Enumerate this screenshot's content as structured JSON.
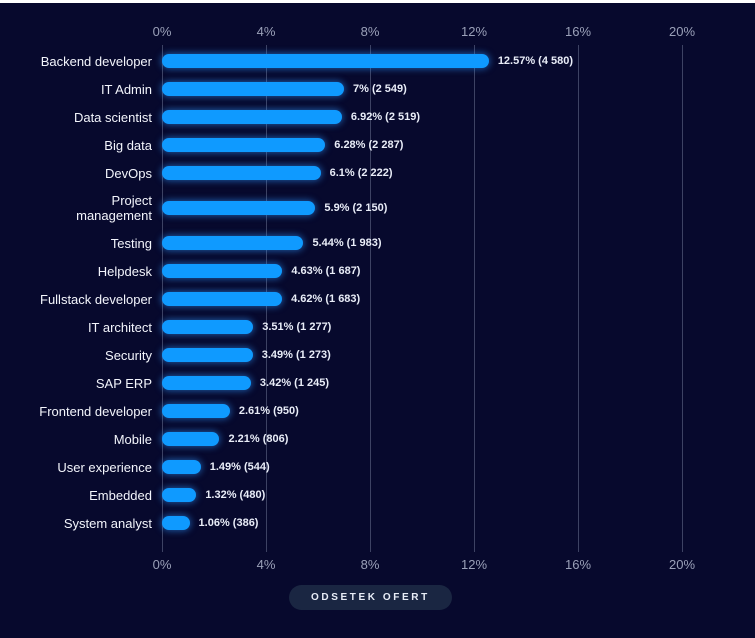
{
  "page": {
    "background": "#07092d",
    "top_strip_color": "#ffffff"
  },
  "chart_data": {
    "type": "bar",
    "orientation": "horizontal",
    "title": "",
    "xlabel": "ODSETEK OFERT",
    "ylabel": "",
    "xlim": [
      0,
      20
    ],
    "grid": true,
    "bar_color": "#0f9aff",
    "gridline_color": "#3d4263",
    "axis_text_color": "#9aa0b8",
    "x_ticks": [
      {
        "value": 0,
        "label": "0%"
      },
      {
        "value": 4,
        "label": "4%"
      },
      {
        "value": 8,
        "label": "8%"
      },
      {
        "value": 12,
        "label": "12%"
      },
      {
        "value": 16,
        "label": "16%"
      },
      {
        "value": 20,
        "label": "20%"
      }
    ],
    "categories": [
      "Backend developer",
      "IT Admin",
      "Data scientist",
      "Big data",
      "DevOps",
      "Project\nmanagement",
      "Testing",
      "Helpdesk",
      "Fullstack developer",
      "IT architect",
      "Security",
      "SAP ERP",
      "Frontend developer",
      "Mobile",
      "User experience",
      "Embedded",
      "System analyst"
    ],
    "values": [
      12.57,
      7,
      6.92,
      6.28,
      6.1,
      5.9,
      5.44,
      4.63,
      4.62,
      3.51,
      3.49,
      3.42,
      2.61,
      2.21,
      1.49,
      1.32,
      1.06
    ],
    "counts": [
      4580,
      2549,
      2519,
      2287,
      2222,
      2150,
      1983,
      1687,
      1683,
      1277,
      1273,
      1245,
      950,
      806,
      544,
      480,
      386
    ],
    "value_labels": [
      "12.57% (4 580)",
      "7% (2 549)",
      "6.92% (2 519)",
      "6.28% (2 287)",
      "6.1% (2 222)",
      "5.9% (2 150)",
      "5.44% (1 983)",
      "4.63% (1 687)",
      "4.62% (1 683)",
      "3.51% (1 277)",
      "3.49% (1 273)",
      "3.42% (1 245)",
      "2.61% (950)",
      "2.21% (806)",
      "1.49% (544)",
      "1.32% (480)",
      "1.06% (386)"
    ]
  }
}
